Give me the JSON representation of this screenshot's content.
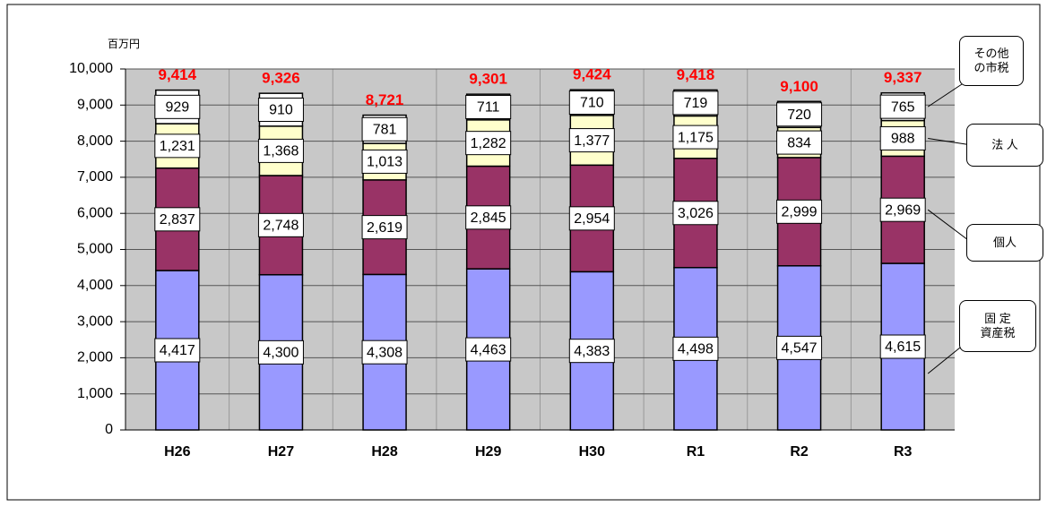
{
  "chart_data": {
    "type": "stacked_bar",
    "y_axis_label": "百万円",
    "categories": [
      "H26",
      "H27",
      "H28",
      "H29",
      "H30",
      "R1",
      "R2",
      "R3"
    ],
    "series": [
      {
        "name": "固 定\n資産税",
        "color": "#9999ff",
        "values": [
          4417,
          4300,
          4308,
          4463,
          4383,
          4498,
          4547,
          4615
        ],
        "value_labels": [
          "4,417",
          "4,300",
          "4,308",
          "4,463",
          "4,383",
          "4,498",
          "4,547",
          "4,615"
        ]
      },
      {
        "name": "個人",
        "color": "#993366",
        "values": [
          2837,
          2748,
          2619,
          2845,
          2954,
          3026,
          2999,
          2969
        ],
        "value_labels": [
          "2,837",
          "2,748",
          "2,619",
          "2,845",
          "2,954",
          "3,026",
          "2,999",
          "2,969"
        ]
      },
      {
        "name": "法 人",
        "color": "#ffffcc",
        "values": [
          1231,
          1368,
          1013,
          1282,
          1377,
          1175,
          834,
          988
        ],
        "value_labels": [
          "1,231",
          "1,368",
          "1,013",
          "1,282",
          "1,377",
          "1,175",
          "834",
          "988"
        ]
      },
      {
        "name": "その他\nの市税",
        "color": "#ffffff",
        "values": [
          929,
          910,
          781,
          711,
          710,
          719,
          720,
          765
        ]
      }
    ],
    "totals": [
      9414,
      9326,
      8721,
      9301,
      9424,
      9418,
      9100,
      9337
    ],
    "total_labels": [
      "9,414",
      "9,326",
      "8,721",
      "9,301",
      "9,424",
      "9,418",
      "9,100",
      "9,337"
    ],
    "total_color": "#ff0000",
    "plot_background": "#c8c8c8",
    "ylim": [
      0,
      10000
    ],
    "yticks": [
      0,
      {
        "value": 1000,
        "label": "1,000"
      },
      {
        "value": 2000,
        "label": "2,000"
      },
      {
        "value": 3000,
        "label": "3,000"
      },
      {
        "value": 4000,
        "label": "4,000"
      },
      {
        "value": 5000,
        "label": "5,000"
      },
      {
        "value": 6000,
        "label": "6,000"
      },
      {
        "value": 7000,
        "label": "7,000"
      },
      {
        "value": 8000,
        "label": "8,000"
      },
      {
        "value": 9000,
        "label": "9,000"
      },
      {
        "value": 10000,
        "label": "10,000"
      }
    ],
    "grid": true
  }
}
